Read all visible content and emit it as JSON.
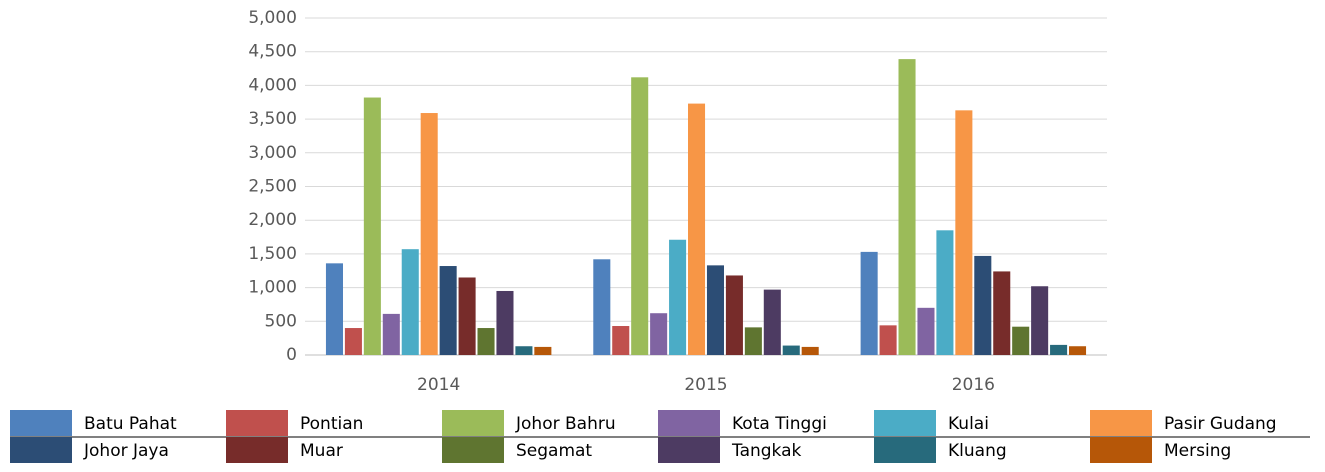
{
  "chart_data": {
    "type": "bar",
    "categories": [
      "2014",
      "2015",
      "2016"
    ],
    "series": [
      {
        "name": "Batu Pahat",
        "color": "#4f81bd",
        "values": [
          1360,
          1420,
          1530
        ]
      },
      {
        "name": "Pontian",
        "color": "#c0504d",
        "values": [
          400,
          430,
          440
        ]
      },
      {
        "name": "Johor Bahru",
        "color": "#9bbb59",
        "values": [
          3820,
          4120,
          4390
        ]
      },
      {
        "name": "Kota Tinggi",
        "color": "#8064a2",
        "values": [
          610,
          620,
          700
        ]
      },
      {
        "name": "Kulai",
        "color": "#4bacc6",
        "values": [
          1570,
          1710,
          1850
        ]
      },
      {
        "name": "Pasir Gudang",
        "color": "#f79646",
        "values": [
          3590,
          3730,
          3630
        ]
      },
      {
        "name": "Johor Jaya",
        "color": "#2c4d75",
        "values": [
          1320,
          1330,
          1470
        ]
      },
      {
        "name": "Muar",
        "color": "#772c2a",
        "values": [
          1150,
          1180,
          1240
        ]
      },
      {
        "name": "Segamat",
        "color": "#5f7530",
        "values": [
          400,
          410,
          420
        ]
      },
      {
        "name": "Tangkak",
        "color": "#4d3b62",
        "values": [
          950,
          970,
          1020
        ]
      },
      {
        "name": "Kluang",
        "color": "#276a7c",
        "values": [
          130,
          140,
          150
        ]
      },
      {
        "name": "Mersing",
        "color": "#b65708",
        "values": [
          120,
          120,
          130
        ]
      }
    ],
    "ylim": [
      0,
      5000
    ],
    "yticks": [
      0,
      500,
      {
        "value": 1000,
        "label": "1,000"
      },
      {
        "value": 1500,
        "label": "1,500"
      },
      {
        "value": 2000,
        "label": "2,000"
      },
      {
        "value": 2500,
        "label": "2,500"
      },
      {
        "value": 3000,
        "label": "3,000"
      },
      {
        "value": 3500,
        "label": "3,500"
      },
      {
        "value": 4000,
        "label": "4,000"
      },
      {
        "value": 4500,
        "label": "4,500"
      },
      {
        "value": 5000,
        "label": "5,000"
      }
    ],
    "grid": true,
    "legend": "bottom"
  }
}
